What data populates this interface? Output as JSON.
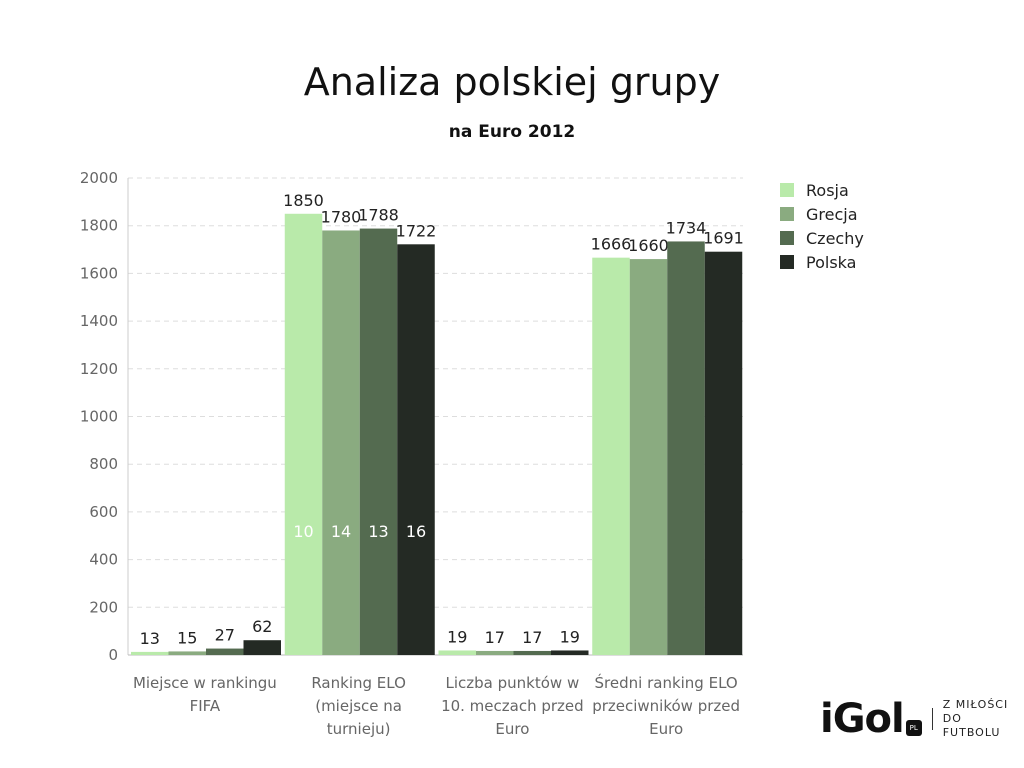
{
  "chart_data": {
    "type": "bar",
    "title": "Analiza polskiej grupy",
    "subtitle": "na Euro 2012",
    "categories": [
      [
        "Miejsce w rankingu",
        "FIFA"
      ],
      [
        "Ranking ELO",
        "(miejsce na",
        "turnieju)"
      ],
      [
        "Liczba punktów w",
        "10. meczach przed",
        "Euro"
      ],
      [
        "Średni ranking ELO",
        "przeciwników przed",
        "Euro"
      ]
    ],
    "series": [
      {
        "name": "Rosja",
        "color": "#b9eaaa",
        "values": [
          13,
          1850,
          19,
          1666
        ],
        "inner_labels": [
          null,
          10,
          null,
          null
        ]
      },
      {
        "name": "Grecja",
        "color": "#8aab80",
        "values": [
          15,
          1780,
          17,
          1660
        ],
        "inner_labels": [
          null,
          14,
          null,
          null
        ]
      },
      {
        "name": "Czechy",
        "color": "#546b50",
        "values": [
          27,
          1788,
          17,
          1734
        ],
        "inner_labels": [
          null,
          13,
          null,
          null
        ]
      },
      {
        "name": "Polska",
        "color": "#242a24",
        "values": [
          62,
          1722,
          19,
          1691
        ],
        "inner_labels": [
          null,
          16,
          null,
          null
        ]
      }
    ],
    "ylim": [
      0,
      2000
    ],
    "yticks": [
      0,
      200,
      400,
      600,
      800,
      1000,
      1200,
      1400,
      1600,
      1800,
      2000
    ],
    "grid": true,
    "legend": "right"
  },
  "logo": {
    "text": "iGol",
    "badge": "PL",
    "tagline": [
      "Z MIŁOŚCI",
      "DO FUTBOLU"
    ]
  }
}
